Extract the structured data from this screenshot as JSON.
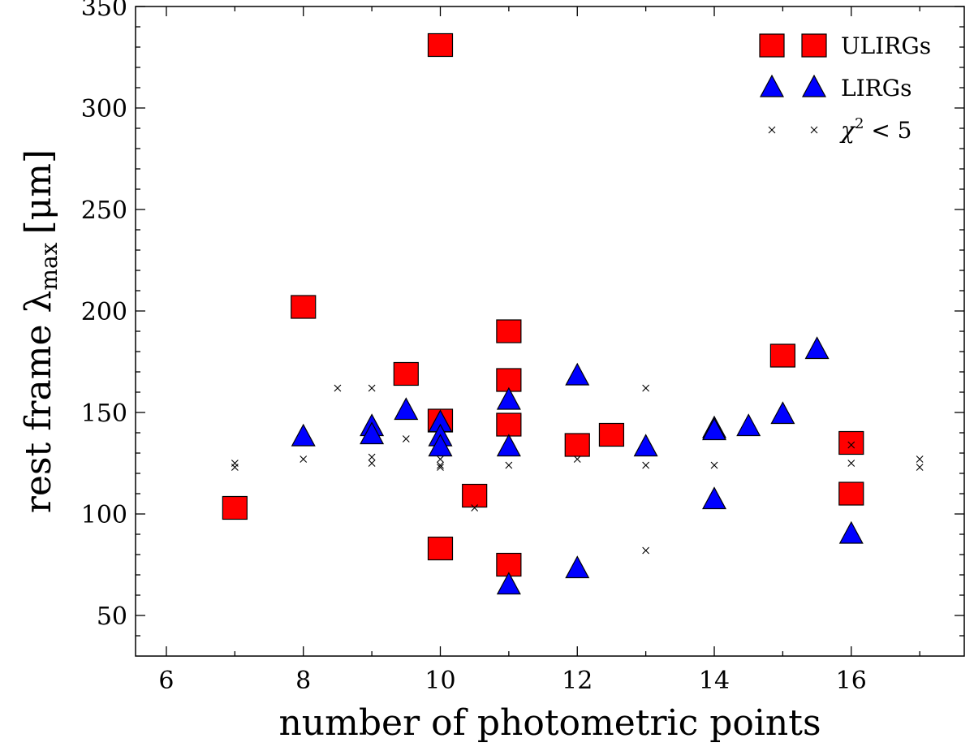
{
  "chart_data": {
    "type": "scatter",
    "xlabel": "number of photometric points",
    "ylabel": "rest frame λ",
    "ylabel_sub": "max",
    "ylabel_unit": "[μm]",
    "xlim": [
      5.55,
      17.65
    ],
    "ylim": [
      30,
      350
    ],
    "x_ticks": [
      6,
      8,
      10,
      12,
      14,
      16
    ],
    "y_ticks": [
      50,
      100,
      150,
      200,
      250,
      300,
      350
    ],
    "grid": false,
    "legend_position": "top-right",
    "series": [
      {
        "name": "ULIRGs",
        "marker": "square",
        "color": "#ff0000",
        "points": [
          [
            7,
            103
          ],
          [
            8,
            202
          ],
          [
            9.5,
            169
          ],
          [
            10,
            331
          ],
          [
            10,
            146
          ],
          [
            10,
            83
          ],
          [
            10.5,
            109
          ],
          [
            11,
            190
          ],
          [
            11,
            166
          ],
          [
            11,
            144
          ],
          [
            11,
            75
          ],
          [
            12,
            134
          ],
          [
            12.5,
            139
          ],
          [
            15,
            178
          ],
          [
            16,
            135
          ],
          [
            16,
            110
          ]
        ]
      },
      {
        "name": "LIRGs",
        "marker": "triangle",
        "color": "#0000ff",
        "points": [
          [
            8,
            138
          ],
          [
            9,
            143
          ],
          [
            9,
            139
          ],
          [
            9.5,
            151
          ],
          [
            10,
            145
          ],
          [
            10,
            138
          ],
          [
            10,
            133
          ],
          [
            11,
            156
          ],
          [
            11,
            133
          ],
          [
            11,
            65
          ],
          [
            12,
            168
          ],
          [
            12,
            73
          ],
          [
            13,
            133
          ],
          [
            14,
            142
          ],
          [
            14,
            141
          ],
          [
            14,
            107
          ],
          [
            14.5,
            143
          ],
          [
            15,
            149
          ],
          [
            15.5,
            181
          ],
          [
            16,
            90
          ]
        ]
      },
      {
        "name": "χ",
        "name_sup": "2",
        "name_rest": " < 5",
        "marker": "x",
        "color": "#000000",
        "points": [
          [
            7,
            125
          ],
          [
            7,
            123
          ],
          [
            8,
            127
          ],
          [
            8.5,
            162
          ],
          [
            9,
            162
          ],
          [
            9,
            128
          ],
          [
            9,
            125
          ],
          [
            9.5,
            137
          ],
          [
            10,
            127
          ],
          [
            10,
            124
          ],
          [
            10,
            123
          ],
          [
            10.5,
            103
          ],
          [
            11,
            124
          ],
          [
            12,
            127
          ],
          [
            13,
            162
          ],
          [
            13,
            124
          ],
          [
            13,
            82
          ],
          [
            14,
            124
          ],
          [
            16,
            134
          ],
          [
            16,
            125
          ],
          [
            17,
            127
          ],
          [
            17,
            123
          ]
        ]
      }
    ]
  }
}
